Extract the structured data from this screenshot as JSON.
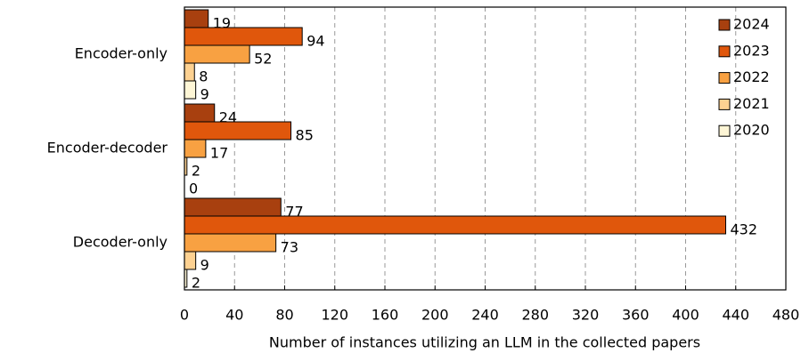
{
  "chart_data": {
    "type": "hbar",
    "xlabel": "Number of instances utilizing an LLM in the collected papers",
    "categories": [
      "Encoder-only",
      "Encoder-decoder",
      "Decoder-only"
    ],
    "series": [
      {
        "name": "2024",
        "color": "#a8400f",
        "values": [
          19,
          24,
          77
        ]
      },
      {
        "name": "2023",
        "color": "#e0570c",
        "values": [
          94,
          85,
          432
        ]
      },
      {
        "name": "2022",
        "color": "#f8a142",
        "values": [
          52,
          17,
          73
        ]
      },
      {
        "name": "2021",
        "color": "#fdd191",
        "values": [
          8,
          2,
          9
        ]
      },
      {
        "name": "2020",
        "color": "#fef6d6",
        "values": [
          9,
          0,
          2
        ]
      }
    ],
    "xlim": [
      0,
      480
    ],
    "xticks": [
      0,
      40,
      80,
      120,
      160,
      200,
      240,
      280,
      320,
      360,
      400,
      440,
      480
    ],
    "grid": true,
    "legend": "upper right"
  }
}
